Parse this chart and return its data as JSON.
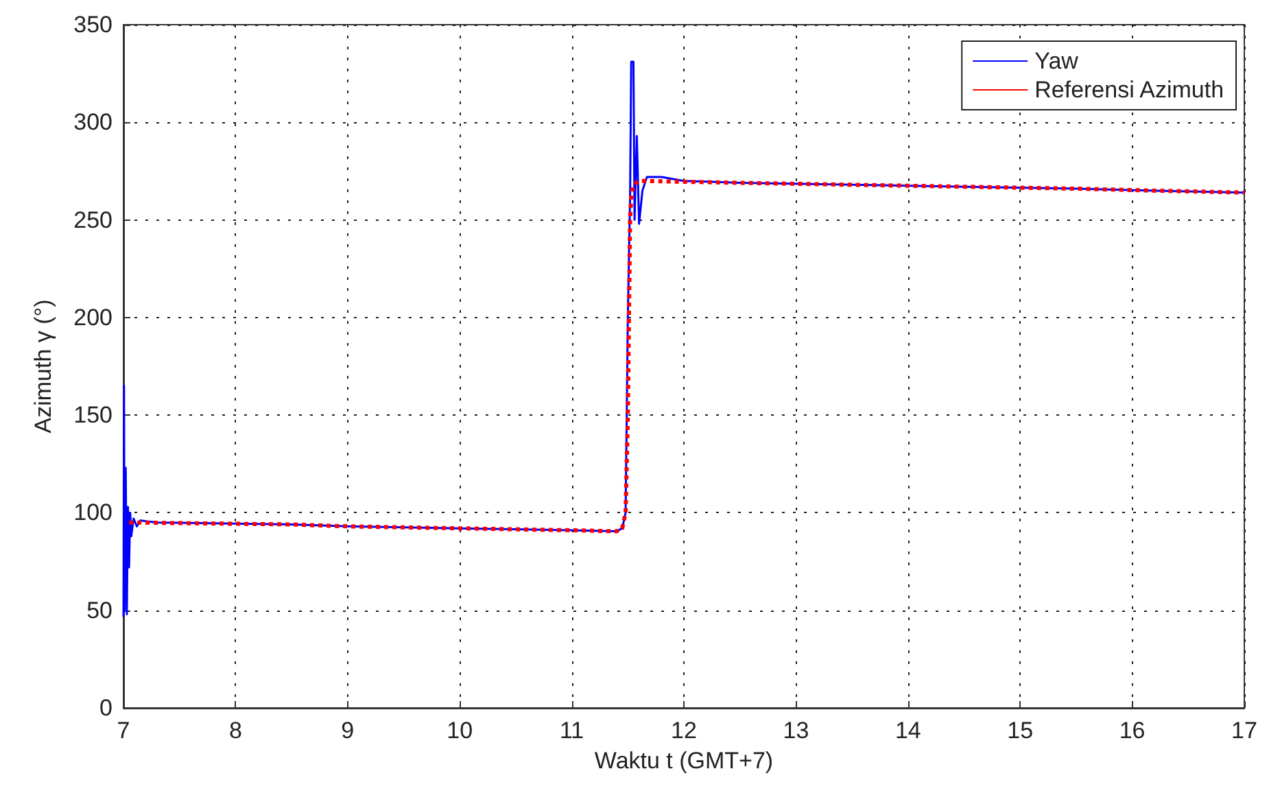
{
  "chart_data": {
    "type": "line",
    "xlabel": "Waktu t (GMT+7)",
    "ylabel": "Azimuth γ (°)",
    "xlim": [
      7,
      17
    ],
    "xticks": [
      7,
      8,
      9,
      10,
      11,
      12,
      13,
      14,
      15,
      16,
      17
    ],
    "ylim": [
      0,
      350
    ],
    "yticks": [
      0,
      50,
      100,
      150,
      200,
      250,
      300,
      350
    ],
    "grid": true,
    "legend": "top right",
    "marker": "none",
    "series": [
      {
        "name": "Yaw",
        "color": "#0000ff",
        "line_style": "solid",
        "x": [
          7,
          7.005,
          7.01,
          7.02,
          7.03,
          7.04,
          7.05,
          7.06,
          7.07,
          7.09,
          7.12,
          7.15,
          7.3,
          8.5,
          9,
          10,
          11,
          11.4,
          11.45,
          11.48,
          11.5,
          11.52,
          11.53,
          11.55,
          11.56,
          11.58,
          11.6,
          11.63,
          11.67,
          11.8,
          12,
          12.5,
          13.5,
          14.5,
          15.5,
          16.2,
          17
        ],
        "values": [
          47,
          165,
          50,
          123,
          48,
          103,
          72,
          100,
          88,
          97,
          93,
          96,
          95,
          94,
          93,
          92,
          91,
          90.5,
          92,
          100,
          200,
          262,
          331,
          331,
          250,
          293,
          248,
          265,
          272,
          272,
          270,
          269,
          268,
          267,
          266,
          265,
          264
        ]
      },
      {
        "name": "Referensi Azimuth",
        "color": "#ff0000",
        "line_style": "dotted",
        "x": [
          7.05,
          8.5,
          9,
          10,
          11,
          11.4,
          11.45,
          11.48,
          11.5,
          11.51,
          11.52,
          11.53,
          11.55,
          11.6,
          12.5,
          13.5,
          14.5,
          15.5,
          16.2,
          17
        ],
        "values": [
          95,
          94,
          93,
          92,
          91,
          90.5,
          92,
          100,
          150,
          200,
          250,
          262,
          268,
          270,
          269,
          268,
          267,
          266,
          265,
          264
        ]
      }
    ]
  }
}
